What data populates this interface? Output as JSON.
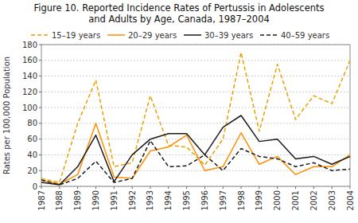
{
  "chart_data": {
    "type": "line",
    "title": "Figure 10. Reported Incidence Rates of Pertussis in Adolescents",
    "subtitle": "and Adults by Age, Canada, 1987–2004",
    "y_label": "Rates per 100,000 Population",
    "x": [
      1987,
      1988,
      1989,
      1990,
      1991,
      1992,
      1993,
      1994,
      1995,
      1996,
      1997,
      1998,
      1999,
      2000,
      2001,
      2002,
      2003,
      2004
    ],
    "series": [
      {
        "name": "15–19 years",
        "color": "#E8A000",
        "line_style": "dashed",
        "values": [
          10,
          5,
          80,
          135,
          25,
          30,
          115,
          52,
          50,
          27,
          60,
          170,
          70,
          155,
          85,
          115,
          105,
          160
        ]
      },
      {
        "name": "20–29 years",
        "color": "#FF8C00",
        "line_style": "solid",
        "values": [
          8,
          3,
          15,
          80,
          12,
          10,
          45,
          50,
          65,
          20,
          25,
          68,
          28,
          38,
          15,
          25,
          25,
          40
        ]
      },
      {
        "name": "30–39 years",
        "color": "#1a1a1a",
        "line_style": "solid",
        "values": [
          5,
          2,
          25,
          65,
          6,
          40,
          60,
          67,
          67,
          40,
          75,
          90,
          57,
          60,
          35,
          38,
          28,
          38
        ]
      },
      {
        "name": "40–59 years",
        "color": "#1a1a1a",
        "line_style": "dashed",
        "values": [
          8,
          2,
          10,
          32,
          5,
          10,
          58,
          25,
          26,
          40,
          20,
          48,
          38,
          35,
          25,
          30,
          20,
          22
        ]
      }
    ],
    "xlim": [
      1987,
      2004
    ],
    "xticks": [
      1987,
      1988,
      1989,
      1990,
      1991,
      1992,
      1993,
      1994,
      1995,
      1996,
      1997,
      1998,
      1999,
      2000,
      2001,
      2002,
      2003,
      2004
    ],
    "ylim": [
      0,
      180
    ],
    "yticks": [
      0,
      20,
      40,
      60,
      80,
      100,
      120,
      140,
      160,
      180
    ],
    "grid": true,
    "legend": "top"
  }
}
